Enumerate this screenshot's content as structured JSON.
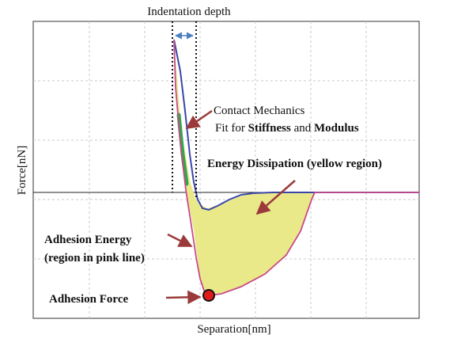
{
  "figure": {
    "top_label": "Indentation depth",
    "xlabel": "Separation[nm]",
    "ylabel": "Force[nN]",
    "annotations": {
      "contact_line1": "Contact Mechanics",
      "contact_fit_prefix": "Fit for ",
      "contact_stiffness": "Stiffness",
      "contact_and": " and ",
      "contact_modulus": "Modulus",
      "energy_dissipation": "Energy Dissipation (yellow region)",
      "adhesion_energy_line1": "Adhesion Energy",
      "adhesion_energy_line2": "(region in pink line)",
      "adhesion_force": "Adhesion Force"
    },
    "colors": {
      "approach_curve": "#3a46a8",
      "retract_curve": "#c84a8a",
      "dissipation_fill": "#e9e98a",
      "fit_segment": "#2fa84a",
      "arrow": "#9b3a3a",
      "adhesion_marker": "#e01a1a",
      "grid": "#c8c8c8"
    }
  }
}
